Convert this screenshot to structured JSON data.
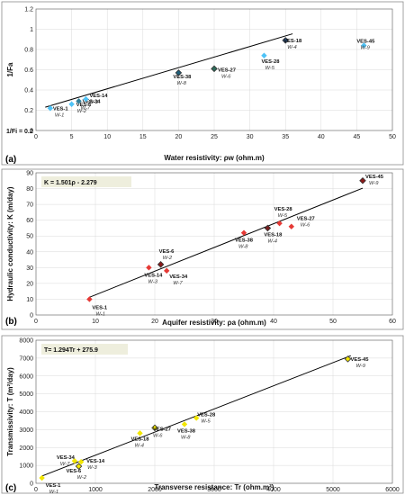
{
  "chart_data": [
    {
      "panel": "(a)",
      "type": "scatter",
      "xlabel": "Water resistivity: ρw (ohm.m)",
      "ylabel": "1/Fa",
      "xlim": [
        0,
        50
      ],
      "ylim": [
        0,
        1.2
      ],
      "xticks": [
        "0",
        "5",
        "10",
        "15",
        "20",
        "25",
        "30",
        "35",
        "40",
        "45",
        "50"
      ],
      "yticks": [
        "0",
        "0.2",
        "0.4",
        "0.6",
        "0.8",
        "1",
        "1.2"
      ],
      "grid": true,
      "annotation": "1/Fi = 0.2",
      "trendline": {
        "x": [
          1.3,
          36
        ],
        "y": [
          0.23,
          0.955
        ]
      },
      "points": [
        {
          "ves": "VES-1",
          "well": "W-1",
          "x": 2,
          "y": 0.22,
          "color": "#4fc3f7",
          "marker": "diamond"
        },
        {
          "ves": "VES-6",
          "well": "W-2",
          "x": 5,
          "y": 0.26,
          "color": "#4fc3f7",
          "marker": "diamond"
        },
        {
          "ves": "VES-34",
          "well": "W-7",
          "x": 6,
          "y": 0.29,
          "color": "#2e7d99",
          "marker": "diamond"
        },
        {
          "ves": "VES-14",
          "well": "W-3",
          "x": 7,
          "y": 0.31,
          "color": "#4fc3f7",
          "marker": "diamond"
        },
        {
          "ves": "VES-38",
          "well": "W-8",
          "x": 20,
          "y": 0.57,
          "color": "#1f5f7a",
          "marker": "diamond"
        },
        {
          "ves": "VES-27",
          "well": "W-6",
          "x": 25,
          "y": 0.61,
          "color": "#2e6b5a",
          "marker": "diamond"
        },
        {
          "ves": "VES-28",
          "well": "W-5",
          "x": 32,
          "y": 0.74,
          "color": "#4fc3f7",
          "marker": "diamond"
        },
        {
          "ves": "VES-18",
          "well": "W-4",
          "x": 35,
          "y": 0.89,
          "color": "#2b4f7a",
          "marker": "diamond"
        },
        {
          "ves": "VES-45",
          "well": "W-9",
          "x": 46,
          "y": 0.84,
          "color": "#4fc3f7",
          "marker": "diamond"
        }
      ]
    },
    {
      "panel": "(b)",
      "type": "scatter",
      "xlabel": "Aquifer resistivity: ρa (ohm.m)",
      "ylabel": "Hydraulic conductivity: K (m/day)",
      "xlim": [
        0,
        60
      ],
      "ylim": [
        0,
        90
      ],
      "xticks": [
        "0",
        "10",
        "20",
        "30",
        "40",
        "50",
        "60"
      ],
      "yticks": [
        "0",
        "10",
        "20",
        "30",
        "40",
        "50",
        "60",
        "70",
        "80",
        "90"
      ],
      "grid": true,
      "equation": "K = 1.501ρ - 2.279",
      "trendline": {
        "x": [
          9,
          55
        ],
        "y": [
          11.23,
          80.28
        ]
      },
      "points": [
        {
          "ves": "VES-1",
          "well": "W-1",
          "x": 9,
          "y": 10,
          "color": "#e53935",
          "marker": "diamond"
        },
        {
          "ves": "VES-14",
          "well": "W-3",
          "x": 19,
          "y": 30,
          "color": "#e53935",
          "marker": "diamond"
        },
        {
          "ves": "VES-6",
          "well": "W-2",
          "x": 21,
          "y": 32,
          "color": "#8b1a1a",
          "marker": "diamond"
        },
        {
          "ves": "VES-34",
          "well": "W-7",
          "x": 22,
          "y": 28,
          "color": "#e53935",
          "marker": "diamond"
        },
        {
          "ves": "VES-38",
          "well": "W-8",
          "x": 35,
          "y": 52,
          "color": "#e53935",
          "marker": "diamond"
        },
        {
          "ves": "VES-18",
          "well": "W-4",
          "x": 39,
          "y": 55,
          "color": "#7a2020",
          "marker": "diamond"
        },
        {
          "ves": "VES-28",
          "well": "W-5",
          "x": 41,
          "y": 58,
          "color": "#e53935",
          "marker": "diamond"
        },
        {
          "ves": "VES-27",
          "well": "W-6",
          "x": 43,
          "y": 56,
          "color": "#e53935",
          "marker": "diamond"
        },
        {
          "ves": "VES-45",
          "well": "W-9",
          "x": 55,
          "y": 85,
          "color": "#8b1a1a",
          "marker": "diamond"
        }
      ]
    },
    {
      "panel": "(c)",
      "type": "scatter",
      "xlabel": "Transverse resistance: Tr (ohm.m²)",
      "ylabel": "Transmissivity: T (m²/day)",
      "xlim": [
        0,
        6000
      ],
      "ylim": [
        0,
        8000
      ],
      "xticks": [
        "0",
        "1000",
        "2000",
        "3000",
        "4000",
        "5000",
        "6000"
      ],
      "yticks": [
        "0",
        "1000",
        "2000",
        "3000",
        "4000",
        "5000",
        "6000",
        "7000",
        "8000"
      ],
      "grid": true,
      "equation": "T= 1.294Tr + 275.9",
      "trendline": {
        "x": [
          100,
          5300
        ],
        "y": [
          405.3,
          7134
        ]
      },
      "points": [
        {
          "ves": "VES-1",
          "well": "W-1",
          "x": 100,
          "y": 300,
          "color": "#f2e600",
          "marker": "diamond"
        },
        {
          "ves": "VES-34",
          "well": "W-7",
          "x": 650,
          "y": 1250,
          "color": "#f2e600",
          "marker": "diamond"
        },
        {
          "ves": "VES-14",
          "well": "W-3",
          "x": 760,
          "y": 1200,
          "color": "#f2e600",
          "marker": "diamond"
        },
        {
          "ves": "VES-6",
          "well": "W-2",
          "x": 720,
          "y": 950,
          "color": "#f2e600",
          "marker": "diamond"
        },
        {
          "ves": "VES-18",
          "well": "W-4",
          "x": 1750,
          "y": 2800,
          "color": "#f2e600",
          "marker": "diamond"
        },
        {
          "ves": "VES-27",
          "well": "W-6",
          "x": 2000,
          "y": 3100,
          "color": "#f2e600",
          "marker": "diamond"
        },
        {
          "ves": "VES-38",
          "well": "W-8",
          "x": 2500,
          "y": 3300,
          "color": "#f2e600",
          "marker": "diamond"
        },
        {
          "ves": "VES-28",
          "well": "W-5",
          "x": 2700,
          "y": 3650,
          "color": "#f2e600",
          "marker": "diamond"
        },
        {
          "ves": "VES-45",
          "well": "W-9",
          "x": 5250,
          "y": 6950,
          "color": "#f2e600",
          "marker": "diamond"
        }
      ]
    }
  ]
}
